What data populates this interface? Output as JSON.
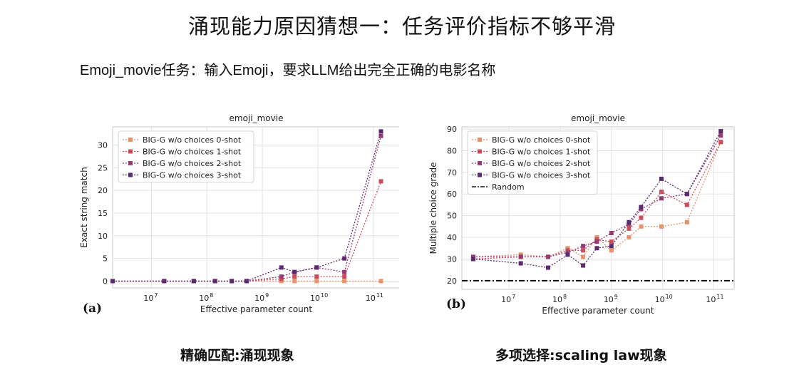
{
  "slide": {
    "title": "涌现能力原因猜想一：任务评价指标不够平滑",
    "subtitle": "Emoji_movie任务：输入Emoji，要求LLM给出完全正确的电影名称",
    "captions": [
      "精确匹配:涌现现象",
      "多项选择:scaling law现象"
    ],
    "panel_labels": [
      "(a)",
      "(b)"
    ]
  },
  "colors": {
    "0-shot": "#e8916a",
    "1-shot": "#cc4c59",
    "2-shot": "#973b72",
    "3-shot": "#5b2a6e",
    "random": "#111111"
  },
  "chart_data": [
    {
      "type": "line",
      "title": "emoji_movie",
      "xlabel": "Effective parameter count",
      "ylabel": "Exact string match",
      "xscale": "log",
      "xlim": [
        2000000,
        300000000000
      ],
      "ylim": [
        -1.5,
        34
      ],
      "xticks": [
        {
          "v": 10000000,
          "e": "7"
        },
        {
          "v": 100000000,
          "e": "8"
        },
        {
          "v": 1000000000,
          "e": "9"
        },
        {
          "v": 10000000000,
          "e": "10"
        },
        {
          "v": 100000000000,
          "e": "11"
        }
      ],
      "yticks": [
        0,
        5,
        10,
        15,
        20,
        25,
        30
      ],
      "grid": true,
      "legend": "top-left",
      "series": [
        {
          "name": "BIG-G w/o choices 0-shot",
          "key": "0-shot",
          "x": [
            2000000,
            17000000,
            58000000,
            140000000,
            280000000,
            520000000,
            2200000000,
            3800000000,
            9500000000,
            30000000000,
            137000000000
          ],
          "y": [
            0,
            0,
            0,
            0,
            0,
            0,
            0,
            0,
            0,
            0,
            0
          ]
        },
        {
          "name": "BIG-G w/o choices 1-shot",
          "key": "1-shot",
          "x": [
            2000000,
            17000000,
            58000000,
            140000000,
            280000000,
            520000000,
            2200000000,
            3800000000,
            9500000000,
            30000000000,
            137000000000
          ],
          "y": [
            0,
            0,
            0,
            0,
            0,
            0,
            0.5,
            1,
            1,
            1,
            22
          ]
        },
        {
          "name": "BIG-G w/o choices 2-shot",
          "key": "2-shot",
          "x": [
            2000000,
            17000000,
            58000000,
            140000000,
            280000000,
            520000000,
            2200000000,
            3800000000,
            9500000000,
            30000000000,
            137000000000
          ],
          "y": [
            0,
            0,
            0,
            0,
            0,
            0,
            1,
            2,
            3,
            2,
            32
          ]
        },
        {
          "name": "BIG-G w/o choices 3-shot",
          "key": "3-shot",
          "x": [
            2000000,
            17000000,
            58000000,
            140000000,
            280000000,
            520000000,
            2200000000,
            3800000000,
            9500000000,
            30000000000,
            137000000000
          ],
          "y": [
            0,
            0,
            0,
            0,
            0,
            0,
            3,
            2,
            3,
            5,
            33
          ]
        }
      ]
    },
    {
      "type": "line",
      "title": "emoji_movie",
      "xlabel": "Effective parameter count",
      "ylabel": "Multiple choice grade",
      "xscale": "log",
      "xlim": [
        1200000,
        250000000000
      ],
      "ylim": [
        16,
        91
      ],
      "xticks": [
        {
          "v": 10000000,
          "e": "7"
        },
        {
          "v": 100000000,
          "e": "8"
        },
        {
          "v": 1000000000,
          "e": "9"
        },
        {
          "v": 10000000000,
          "e": "10"
        },
        {
          "v": 100000000000,
          "e": "11"
        }
      ],
      "yticks": [
        20,
        30,
        40,
        50,
        60,
        70,
        80,
        90
      ],
      "grid": true,
      "legend": "top-left",
      "random_baseline": {
        "name": "Random",
        "value": 20
      },
      "series": [
        {
          "name": "BIG-G w/o choices 0-shot",
          "key": "0-shot",
          "x": [
            2000000,
            17000000,
            58000000,
            140000000,
            280000000,
            520000000,
            1000000000,
            2200000000,
            3800000000,
            9500000000,
            30000000000,
            137000000000
          ],
          "y": [
            31,
            32,
            31,
            35,
            31,
            40,
            34,
            40,
            45,
            45,
            47,
            84
          ]
        },
        {
          "name": "BIG-G w/o choices 1-shot",
          "key": "1-shot",
          "x": [
            2000000,
            17000000,
            58000000,
            140000000,
            280000000,
            520000000,
            1000000000,
            2200000000,
            3800000000,
            9500000000,
            30000000000,
            137000000000
          ],
          "y": [
            30,
            31,
            31,
            34,
            34,
            39,
            38,
            44,
            49,
            61,
            55,
            84
          ]
        },
        {
          "name": "BIG-G w/o choices 2-shot",
          "key": "2-shot",
          "x": [
            2000000,
            17000000,
            58000000,
            140000000,
            280000000,
            520000000,
            1000000000,
            2200000000,
            3800000000,
            9500000000,
            30000000000,
            137000000000
          ],
          "y": [
            31,
            31,
            31,
            33,
            36,
            38,
            42,
            46,
            53,
            58,
            60,
            87
          ]
        },
        {
          "name": "BIG-G w/o choices 3-shot",
          "key": "3-shot",
          "x": [
            2000000,
            17000000,
            58000000,
            140000000,
            280000000,
            520000000,
            1000000000,
            2200000000,
            3800000000,
            9500000000,
            30000000000,
            137000000000
          ],
          "y": [
            30,
            28,
            26,
            32,
            27,
            35,
            36,
            47,
            54,
            67,
            60,
            89
          ]
        }
      ]
    }
  ]
}
